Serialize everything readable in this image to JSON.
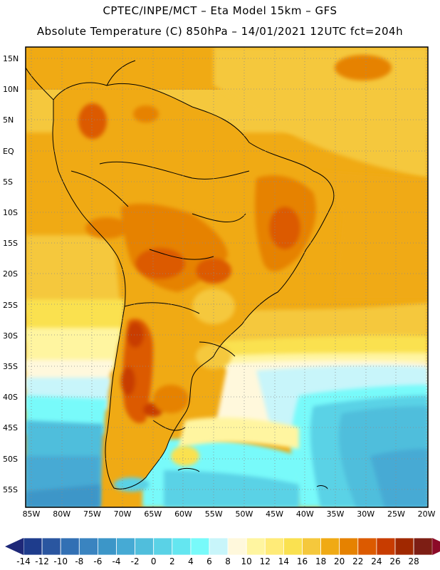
{
  "header": {
    "line1": "CPTEC/INPE/MCT –  Eta Model 15km – GFS",
    "line2": "Absolute Temperature (C) 850hPa – 14/01/2021 12UTC fct=204h"
  },
  "axes": {
    "lat_labels": [
      "15N",
      "10N",
      "5N",
      "EQ",
      "5S",
      "10S",
      "15S",
      "20S",
      "25S",
      "30S",
      "35S",
      "40S",
      "45S",
      "50S",
      "55S"
    ],
    "lon_labels": [
      "85W",
      "80W",
      "75W",
      "70W",
      "65W",
      "60W",
      "55W",
      "50W",
      "45W",
      "40W",
      "35W",
      "30W",
      "25W",
      "20W"
    ]
  },
  "colorbar": {
    "labels": [
      "-14",
      "-12",
      "-10",
      "-8",
      "-6",
      "-4",
      "-2",
      "0",
      "2",
      "4",
      "6",
      "8",
      "10",
      "12",
      "14",
      "16",
      "18",
      "20",
      "22",
      "24",
      "26",
      "28"
    ],
    "colors": [
      "#1e3c8c",
      "#2a56a0",
      "#3270b4",
      "#3a84c0",
      "#3c96c8",
      "#46aad4",
      "#50bedc",
      "#5ad2e6",
      "#64e6f0",
      "#78fafa",
      "#c8f5fa",
      "#fff8dc",
      "#fff5a0",
      "#ffeb78",
      "#fae150",
      "#f5c83c",
      "#f0aa14",
      "#e68200",
      "#dc5a00",
      "#c83c00",
      "#a02800",
      "#7d1e14"
    ],
    "under_color": "#1e2878",
    "over_color": "#8c0a28"
  },
  "palette": {
    "land_outline": "#000000",
    "grid": "#8a8a8a",
    "frame": "#000000"
  }
}
